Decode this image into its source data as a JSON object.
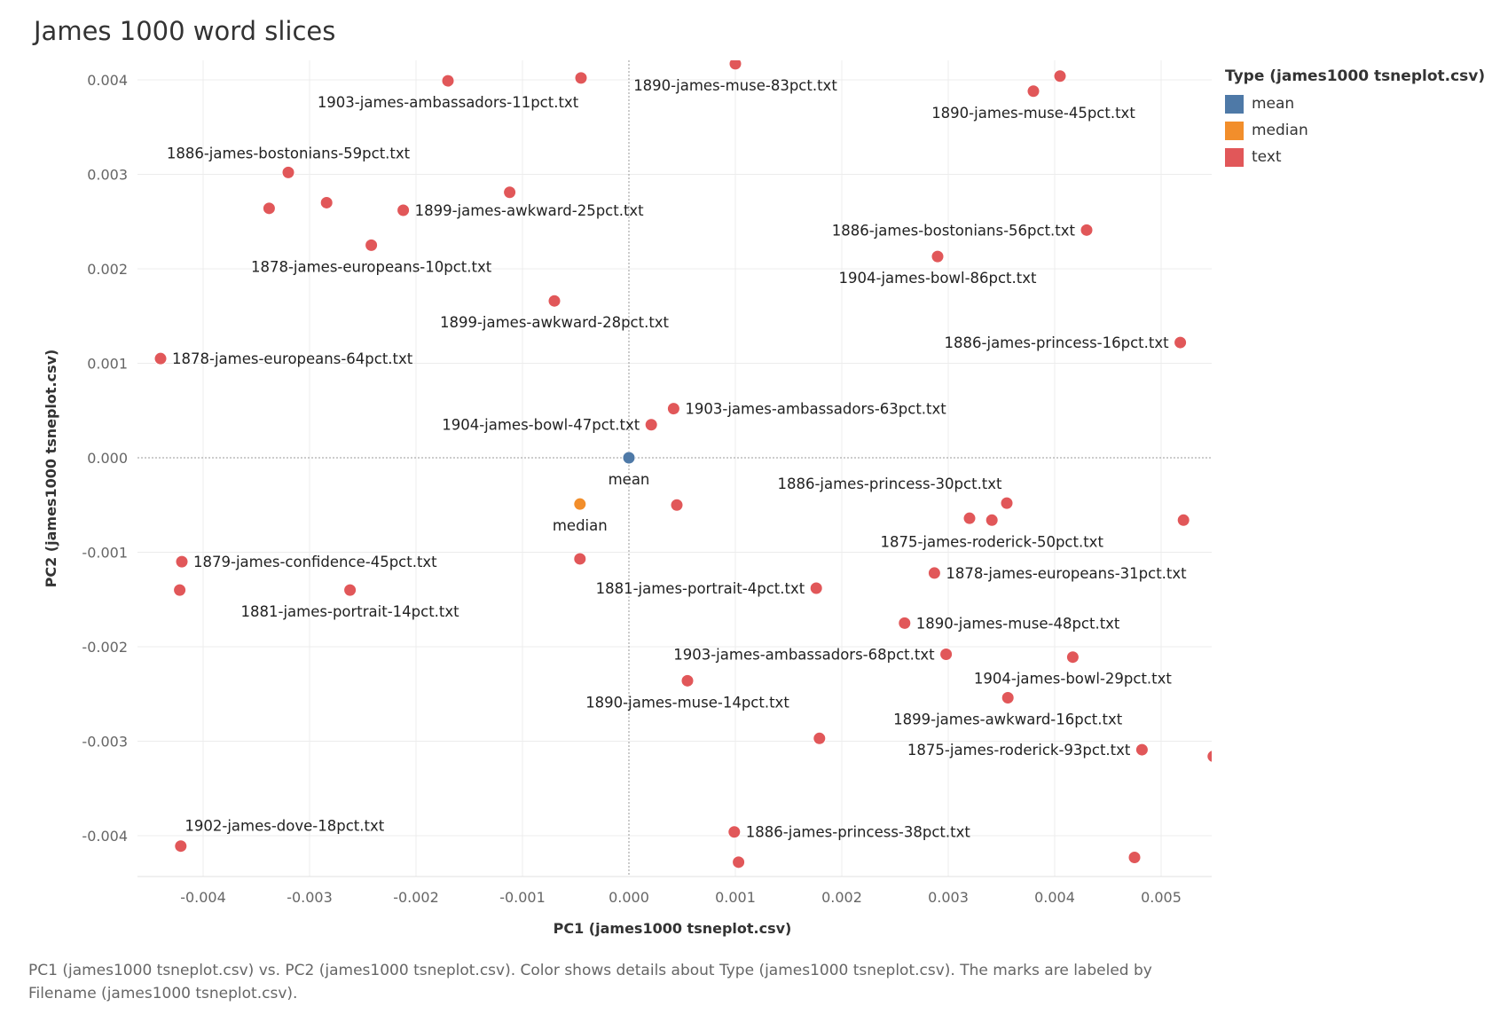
{
  "chart_data": {
    "type": "scatter",
    "title": "James 1000 word slices",
    "xlabel": "PC1 (james1000 tsneplot.csv)",
    "ylabel": "PC2 (james1000 tsneplot.csv)",
    "xlim": [
      -0.0046,
      0.0055
    ],
    "ylim": [
      -0.0044,
      0.0042
    ],
    "x_ticks": [
      "-0.004",
      "-0.003",
      "-0.002",
      "-0.001",
      "0.000",
      "0.001",
      "0.002",
      "0.003",
      "0.004",
      "0.005"
    ],
    "x_tick_values": [
      -0.004,
      -0.003,
      -0.002,
      -0.001,
      0,
      0.001,
      0.002,
      0.003,
      0.004,
      0.005
    ],
    "y_ticks": [
      "0.004",
      "0.003",
      "0.002",
      "0.001",
      "0.000",
      "-0.001",
      "-0.002",
      "-0.003",
      "-0.004"
    ],
    "y_tick_values": [
      0.004,
      0.003,
      0.002,
      0.001,
      0,
      -0.001,
      -0.002,
      -0.003,
      -0.004
    ],
    "grid": true,
    "legend": {
      "title": "Type (james1000 tsneplot.csv)",
      "position": "top-right",
      "entries": [
        {
          "name": "mean",
          "color": "#4e79a7"
        },
        {
          "name": "median",
          "color": "#f28e2b"
        },
        {
          "name": "text",
          "color": "#e15759"
        }
      ]
    },
    "points": [
      {
        "x": 0.001,
        "y": 0.00417,
        "type": "text",
        "label": "1890-james-muse-83pct.txt",
        "pos": "below"
      },
      {
        "x": -0.00045,
        "y": 0.00402,
        "type": "text",
        "label": "",
        "pos": "right"
      },
      {
        "x": -0.0017,
        "y": 0.00399,
        "type": "text",
        "label": "1903-james-ambassadors-11pct.txt",
        "pos": "below"
      },
      {
        "x": 0.00405,
        "y": 0.00404,
        "type": "text",
        "label": "",
        "pos": "right"
      },
      {
        "x": 0.0038,
        "y": 0.00388,
        "type": "text",
        "label": "1890-james-muse-45pct.txt",
        "pos": "below"
      },
      {
        "x": -0.0032,
        "y": 0.00302,
        "type": "text",
        "label": "1886-james-bostonians-59pct.txt",
        "pos": "above"
      },
      {
        "x": -0.00338,
        "y": 0.00264,
        "type": "text",
        "label": "",
        "pos": "right"
      },
      {
        "x": -0.00284,
        "y": 0.0027,
        "type": "text",
        "label": "",
        "pos": "right"
      },
      {
        "x": -0.00212,
        "y": 0.00262,
        "type": "text",
        "label": "1899-james-awkward-25pct.txt",
        "pos": "right"
      },
      {
        "x": -0.00112,
        "y": 0.00281,
        "type": "text",
        "label": "",
        "pos": "right"
      },
      {
        "x": -0.00242,
        "y": 0.00225,
        "type": "text",
        "label": "1878-james-europeans-10pct.txt",
        "pos": "below"
      },
      {
        "x": 0.0043,
        "y": 0.00241,
        "type": "text",
        "label": "1886-james-bostonians-56pct.txt",
        "pos": "left"
      },
      {
        "x": 0.0029,
        "y": 0.00213,
        "type": "text",
        "label": "1904-james-bowl-86pct.txt",
        "pos": "below"
      },
      {
        "x": -0.0007,
        "y": 0.00166,
        "type": "text",
        "label": "1899-james-awkward-28pct.txt",
        "pos": "below"
      },
      {
        "x": 0.00518,
        "y": 0.00122,
        "type": "text",
        "label": "1886-james-princess-16pct.txt",
        "pos": "left"
      },
      {
        "x": -0.0044,
        "y": 0.00105,
        "type": "text",
        "label": "1878-james-europeans-64pct.txt",
        "pos": "right"
      },
      {
        "x": 0.00042,
        "y": 0.00052,
        "type": "text",
        "label": "1903-james-ambassadors-63pct.txt",
        "pos": "right"
      },
      {
        "x": 0.00021,
        "y": 0.00035,
        "type": "text",
        "label": "1904-james-bowl-47pct.txt",
        "pos": "left"
      },
      {
        "x": 0,
        "y": 0,
        "type": "mean",
        "label": "mean",
        "pos": "below"
      },
      {
        "x": -0.00046,
        "y": -0.00049,
        "type": "median",
        "label": "median",
        "pos": "below"
      },
      {
        "x": 0.00045,
        "y": -0.0005,
        "type": "text",
        "label": "",
        "pos": "right"
      },
      {
        "x": 0.00355,
        "y": -0.00048,
        "type": "text",
        "label": "1886-james-princess-30pct.txt",
        "pos": "above-left"
      },
      {
        "x": 0.0032,
        "y": -0.00064,
        "type": "text",
        "label": "",
        "pos": "right"
      },
      {
        "x": 0.00341,
        "y": -0.00066,
        "type": "text",
        "label": "1875-james-roderick-50pct.txt",
        "pos": "below"
      },
      {
        "x": 0.00521,
        "y": -0.00066,
        "type": "text",
        "label": "",
        "pos": "right"
      },
      {
        "x": -0.0042,
        "y": -0.0011,
        "type": "text",
        "label": "1879-james-confidence-45pct.txt",
        "pos": "right"
      },
      {
        "x": -0.00046,
        "y": -0.00107,
        "type": "text",
        "label": "",
        "pos": "right"
      },
      {
        "x": -0.00422,
        "y": -0.0014,
        "type": "text",
        "label": "",
        "pos": "right"
      },
      {
        "x": -0.00262,
        "y": -0.0014,
        "type": "text",
        "label": "1881-james-portrait-14pct.txt",
        "pos": "below"
      },
      {
        "x": 0.00176,
        "y": -0.00138,
        "type": "text",
        "label": "1881-james-portrait-4pct.txt",
        "pos": "left"
      },
      {
        "x": 0.00287,
        "y": -0.00122,
        "type": "text",
        "label": "1878-james-europeans-31pct.txt",
        "pos": "right"
      },
      {
        "x": 0.00259,
        "y": -0.00175,
        "type": "text",
        "label": "1890-james-muse-48pct.txt",
        "pos": "right"
      },
      {
        "x": 0.00298,
        "y": -0.00208,
        "type": "text",
        "label": "1903-james-ambassadors-68pct.txt",
        "pos": "left"
      },
      {
        "x": 0.00417,
        "y": -0.00211,
        "type": "text",
        "label": "1904-james-bowl-29pct.txt",
        "pos": "below"
      },
      {
        "x": 0.00055,
        "y": -0.00236,
        "type": "text",
        "label": "1890-james-muse-14pct.txt",
        "pos": "below"
      },
      {
        "x": 0.00356,
        "y": -0.00254,
        "type": "text",
        "label": "1899-james-awkward-16pct.txt",
        "pos": "below"
      },
      {
        "x": 0.00179,
        "y": -0.00297,
        "type": "text",
        "label": "",
        "pos": "right"
      },
      {
        "x": 0.00482,
        "y": -0.00309,
        "type": "text",
        "label": "1875-james-roderick-93pct.txt",
        "pos": "left"
      },
      {
        "x": 0.00549,
        "y": -0.00316,
        "type": "text",
        "label": "",
        "pos": "right"
      },
      {
        "x": -0.00421,
        "y": -0.00411,
        "type": "text",
        "label": "1902-james-dove-18pct.txt",
        "pos": "above-right"
      },
      {
        "x": 0.00099,
        "y": -0.00396,
        "type": "text",
        "label": "1886-james-princess-38pct.txt",
        "pos": "right"
      },
      {
        "x": 0.00103,
        "y": -0.00428,
        "type": "text",
        "label": "",
        "pos": "right"
      },
      {
        "x": 0.00475,
        "y": -0.00423,
        "type": "text",
        "label": "",
        "pos": "right"
      }
    ]
  },
  "caption": "PC1 (james1000 tsneplot.csv) vs. PC2 (james1000 tsneplot.csv).  Color shows details about Type (james1000 tsneplot.csv).  The marks are labeled by Filename (james1000 tsneplot.csv)."
}
